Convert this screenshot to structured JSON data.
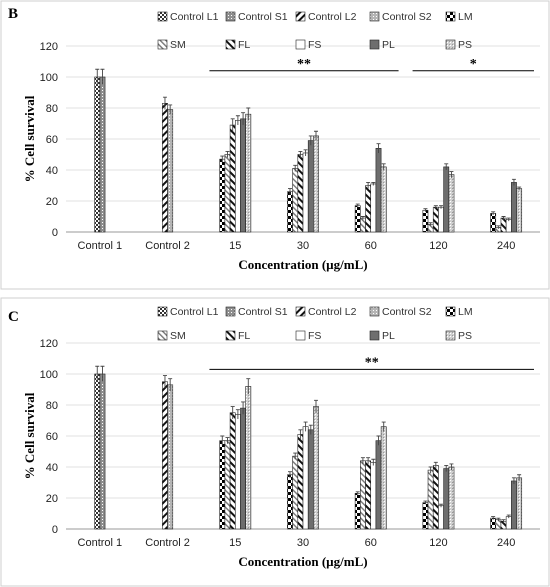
{
  "chart_data": [
    {
      "type": "bar",
      "panel_label": "B",
      "categories": [
        "Control 1",
        "Control 2",
        "15",
        "30",
        "60",
        "120",
        "240"
      ],
      "xlabel": "Concentration (µg/mL)",
      "ylabel": "% Cell survival",
      "ylim": [
        0,
        120
      ],
      "yticks": [
        0,
        20,
        40,
        60,
        80,
        100,
        120
      ],
      "grid": true,
      "legend_position": "top",
      "series": [
        {
          "name": "Control L1",
          "values": [
            100,
            null,
            null,
            null,
            null,
            null,
            null
          ],
          "errors": [
            5,
            null,
            null,
            null,
            null,
            null,
            null
          ]
        },
        {
          "name": "Control S1",
          "values": [
            100,
            null,
            null,
            null,
            null,
            null,
            null
          ],
          "errors": [
            5,
            null,
            null,
            null,
            null,
            null,
            null
          ]
        },
        {
          "name": "Control L2",
          "values": [
            null,
            83,
            null,
            null,
            null,
            null,
            null
          ],
          "errors": [
            null,
            4,
            null,
            null,
            null,
            null,
            null
          ]
        },
        {
          "name": "Control S2",
          "values": [
            null,
            79,
            null,
            null,
            null,
            null,
            null
          ],
          "errors": [
            null,
            3,
            null,
            null,
            null,
            null,
            null
          ]
        },
        {
          "name": "LM",
          "values": [
            null,
            null,
            47,
            26,
            17,
            14,
            12
          ],
          "errors": [
            null,
            null,
            2,
            2,
            1,
            1,
            1
          ]
        },
        {
          "name": "SM",
          "values": [
            null,
            null,
            50,
            41,
            9,
            5,
            3
          ],
          "errors": [
            null,
            null,
            2,
            2,
            1,
            1,
            1
          ]
        },
        {
          "name": "FL",
          "values": [
            null,
            null,
            69,
            50,
            30,
            16,
            9
          ],
          "errors": [
            null,
            null,
            4,
            2,
            2,
            1,
            1
          ]
        },
        {
          "name": "FS",
          "values": [
            null,
            null,
            72,
            51,
            31,
            16,
            8
          ],
          "errors": [
            null,
            null,
            3,
            2,
            1,
            1,
            1
          ]
        },
        {
          "name": "PL",
          "values": [
            null,
            null,
            73,
            59,
            54,
            42,
            32
          ],
          "errors": [
            null,
            null,
            4,
            3,
            3,
            2,
            2
          ]
        },
        {
          "name": "PS",
          "values": [
            null,
            null,
            76,
            62,
            42,
            37,
            28
          ],
          "errors": [
            null,
            null,
            4,
            3,
            2,
            2,
            1
          ]
        }
      ],
      "annotations": [
        {
          "text": "**",
          "from_category": "15",
          "to_category": "60",
          "y": 104
        },
        {
          "text": "*",
          "from_category": "120",
          "to_category": "240",
          "y": 104
        }
      ]
    },
    {
      "type": "bar",
      "panel_label": "C",
      "categories": [
        "Control 1",
        "Control 2",
        "15",
        "30",
        "60",
        "120",
        "240"
      ],
      "xlabel": "Concentration (µg/mL)",
      "ylabel": "% Cell survival",
      "ylim": [
        0,
        120
      ],
      "yticks": [
        0,
        20,
        40,
        60,
        80,
        100,
        120
      ],
      "grid": true,
      "legend_position": "top",
      "series": [
        {
          "name": "Control L1",
          "values": [
            100,
            null,
            null,
            null,
            null,
            null,
            null
          ],
          "errors": [
            5,
            null,
            null,
            null,
            null,
            null,
            null
          ]
        },
        {
          "name": "Control S1",
          "values": [
            100,
            null,
            null,
            null,
            null,
            null,
            null
          ],
          "errors": [
            5,
            null,
            null,
            null,
            null,
            null,
            null
          ]
        },
        {
          "name": "Control L2",
          "values": [
            null,
            95,
            null,
            null,
            null,
            null,
            null
          ],
          "errors": [
            null,
            4,
            null,
            null,
            null,
            null,
            null
          ]
        },
        {
          "name": "Control S2",
          "values": [
            null,
            93,
            null,
            null,
            null,
            null,
            null
          ],
          "errors": [
            null,
            4,
            null,
            null,
            null,
            null,
            null
          ]
        },
        {
          "name": "LM",
          "values": [
            null,
            null,
            57,
            35,
            23,
            17,
            7
          ],
          "errors": [
            null,
            null,
            3,
            2,
            1,
            1,
            1
          ]
        },
        {
          "name": "SM",
          "values": [
            null,
            null,
            57,
            47,
            44,
            38,
            6
          ],
          "errors": [
            null,
            null,
            2,
            2,
            2,
            2,
            1
          ]
        },
        {
          "name": "FL",
          "values": [
            null,
            null,
            75,
            61,
            44,
            41,
            5
          ],
          "errors": [
            null,
            null,
            4,
            3,
            2,
            2,
            1
          ]
        },
        {
          "name": "FS",
          "values": [
            null,
            null,
            74,
            66,
            43,
            15,
            8
          ],
          "errors": [
            null,
            null,
            3,
            3,
            2,
            1,
            1
          ]
        },
        {
          "name": "PL",
          "values": [
            null,
            null,
            78,
            64,
            57,
            39,
            31
          ],
          "errors": [
            null,
            null,
            4,
            3,
            3,
            2,
            2
          ]
        },
        {
          "name": "PS",
          "values": [
            null,
            null,
            92,
            79,
            66,
            40,
            33
          ],
          "errors": [
            null,
            null,
            5,
            4,
            3,
            2,
            2
          ]
        }
      ],
      "annotations": [
        {
          "text": "**",
          "from_category": "15",
          "to_category": "240",
          "y": 103
        }
      ]
    }
  ]
}
